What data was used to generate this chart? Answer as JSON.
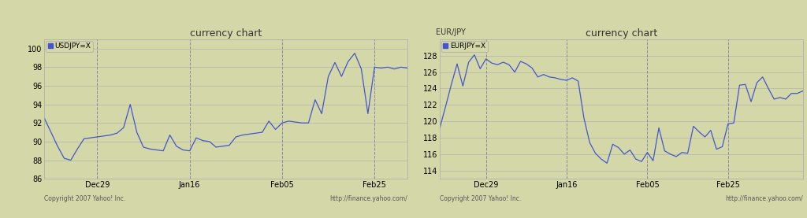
{
  "background_color": "#d4d8a8",
  "plot_bg_color": "#d4d8a8",
  "line_color": "#4455cc",
  "grid_color": "#b0b090",
  "title": "currency chart",
  "title_fontsize": 9,
  "footer_left": "Copyright 2007 Yahoo! Inc.",
  "footer_right": "http://finance.yahoo.com/",
  "chart1": {
    "ylabel_top": "",
    "legend_label": "USDJPY=X",
    "ylim": [
      86,
      101
    ],
    "yticks": [
      86,
      88,
      90,
      92,
      94,
      96,
      98,
      100
    ],
    "xtick_labels": [
      "Dec29",
      "Jan16",
      "Feb05",
      "Feb25"
    ],
    "xtick_positions": [
      8,
      22,
      36,
      50
    ],
    "dashed_vlines": [
      8,
      22,
      36,
      50
    ],
    "y": [
      92.5,
      91.0,
      89.5,
      88.2,
      88.0,
      89.2,
      90.3,
      90.4,
      90.5,
      90.6,
      90.7,
      90.9,
      91.5,
      94.0,
      91.0,
      89.4,
      89.2,
      89.1,
      89.0,
      90.7,
      89.5,
      89.1,
      89.0,
      90.4,
      90.1,
      90.0,
      89.4,
      89.5,
      89.6,
      90.5,
      90.7,
      90.8,
      90.9,
      91.0,
      92.2,
      91.3,
      92.0,
      92.2,
      92.1,
      92.0,
      92.0,
      94.5,
      93.0,
      97.0,
      98.5,
      97.0,
      98.6,
      99.5,
      97.8,
      93.0,
      98.0,
      97.9,
      98.0,
      97.8,
      98.0,
      97.9
    ]
  },
  "chart2": {
    "ylabel_top": "EUR/JPY",
    "legend_label": "EURJPY=X",
    "ylim": [
      113,
      130
    ],
    "yticks": [
      114,
      116,
      118,
      120,
      122,
      124,
      126,
      128
    ],
    "xtick_labels": [
      "Dec29",
      "Jan16",
      "Feb05",
      "Feb25"
    ],
    "xtick_positions": [
      8,
      22,
      36,
      50
    ],
    "dashed_vlines": [
      8,
      22,
      36,
      50
    ],
    "y": [
      119.2,
      121.8,
      124.5,
      127.0,
      124.3,
      127.2,
      128.1,
      126.4,
      127.6,
      127.1,
      126.9,
      127.2,
      126.9,
      126.0,
      127.3,
      127.0,
      126.5,
      125.4,
      125.7,
      125.4,
      125.3,
      125.1,
      125.0,
      125.3,
      124.9,
      120.4,
      117.4,
      116.1,
      115.4,
      114.9,
      117.2,
      116.8,
      116.0,
      116.5,
      115.4,
      115.1,
      116.2,
      115.2,
      119.2,
      116.4,
      116.0,
      115.7,
      116.2,
      116.1,
      119.4,
      118.7,
      118.1,
      118.9,
      116.6,
      116.9,
      119.7,
      119.8,
      124.4,
      124.5,
      122.4,
      124.7,
      125.4,
      124.0,
      122.7,
      122.9,
      122.7,
      123.4,
      123.4,
      123.7
    ]
  }
}
